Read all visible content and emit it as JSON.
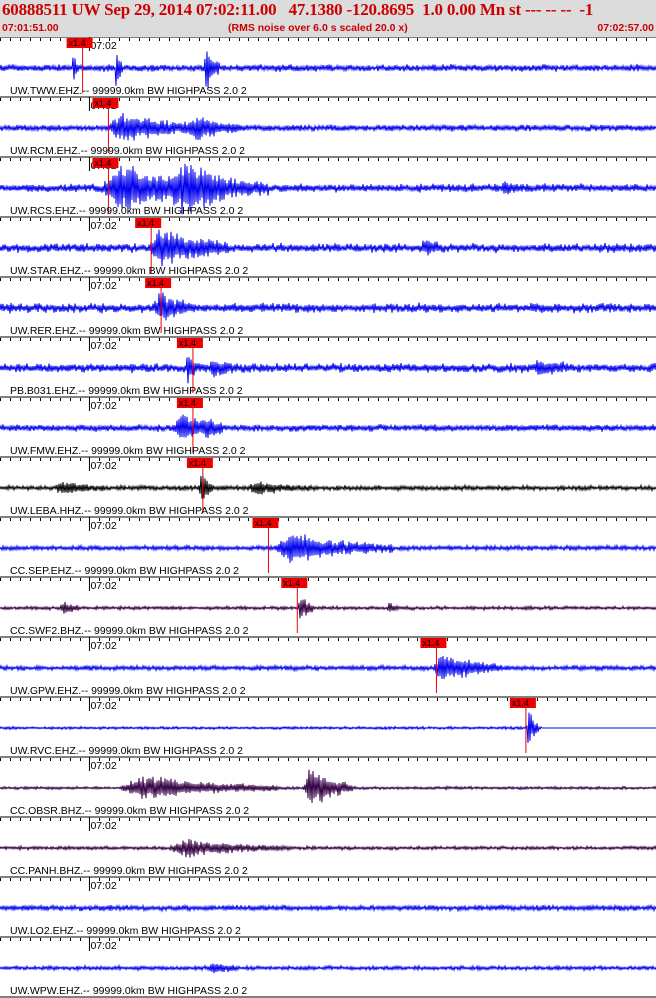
{
  "header": {
    "title": "60888511 UW Sep 29, 2014 07:02:11.00   47.1380 -120.8695  1.0 0.00 Mn st --- -- --  -1",
    "start_time": "07:01:51.00",
    "note": "(RMS noise over 6.0 s scaled 20.0 x)",
    "end_time": "07:02:57.00"
  },
  "chart_data": {
    "type": "line",
    "title": "60888511 UW Sep 29, 2014 07:02:11.00   47.1380 -120.8695  1.0 0.00 Mn st --- -- --  -1",
    "x_unit": "seconds after 07:01:51.00",
    "x_range": [
      0,
      66
    ],
    "minute_tick_label": "07:02",
    "minute_tick_x": 9,
    "grid": true,
    "tick_interval_s": 1,
    "pick_label": "x1.4",
    "colors": {
      "blue": "#0000ee",
      "black": "#000000",
      "purple": "#330044",
      "pick": "#ee0000",
      "tick": "#000000"
    },
    "traces": [
      {
        "label": "UW.TWW.EHZ.-- 99999.0km BW  HIGHPASS  2.0  2",
        "pick": 6.7,
        "color": "blue",
        "noise": 0.1,
        "events": [
          {
            "t": 7.3,
            "amp": 0.75,
            "dur": 0.6
          },
          {
            "t": 11.6,
            "amp": 0.9,
            "dur": 0.7
          },
          {
            "t": 20.5,
            "amp": 0.85,
            "dur": 1.6
          }
        ]
      },
      {
        "label": "UW.RCM.EHZ.-- 99999.0km BW  HIGHPASS  2.0  2",
        "pick": 9.3,
        "color": "blue",
        "noise": 0.09,
        "events": [
          {
            "t": 10.7,
            "amp": 0.55,
            "dur": 11
          },
          {
            "t": 19.0,
            "amp": 0.35,
            "dur": 6
          }
        ]
      },
      {
        "label": "UW.RCS.EHZ.-- 99999.0km BW  HIGHPASS  2.0  2",
        "pick": 9.3,
        "color": "blue",
        "noise": 0.12,
        "events": [
          {
            "t": 10.2,
            "amp": 0.95,
            "dur": 12
          },
          {
            "t": 17.0,
            "amp": 0.8,
            "dur": 10
          },
          {
            "t": 50.5,
            "amp": 0.2,
            "dur": 3
          }
        ]
      },
      {
        "label": "UW.STAR.EHZ.-- 99999.0km BW  HIGHPASS  2.0  2",
        "pick": 13.6,
        "color": "blue",
        "noise": 0.13,
        "events": [
          {
            "t": 15.0,
            "amp": 0.75,
            "dur": 8
          },
          {
            "t": 42.4,
            "amp": 0.3,
            "dur": 2
          }
        ]
      },
      {
        "label": "UW.RER.EHZ.-- 99999.0km BW  HIGHPASS  2.0  2",
        "pick": 14.6,
        "color": "blue",
        "noise": 0.14,
        "events": [
          {
            "t": 15.5,
            "amp": 0.5,
            "dur": 4
          }
        ]
      },
      {
        "label": "PB.B031.EHZ.-- 99999.0km BW  HIGHPASS  2.0  2",
        "pick": 17.8,
        "color": "blue",
        "noise": 0.13,
        "events": [
          {
            "t": 18.7,
            "amp": 0.55,
            "dur": 1.2
          },
          {
            "t": 21.0,
            "amp": 0.3,
            "dur": 3
          },
          {
            "t": 53.5,
            "amp": 0.28,
            "dur": 4
          }
        ]
      },
      {
        "label": "UW.FMW.EHZ.-- 99999.0km BW  HIGHPASS  2.0  2",
        "pick": 17.8,
        "color": "blue",
        "noise": 0.1,
        "events": [
          {
            "t": 17.5,
            "amp": 0.55,
            "dur": 5
          },
          {
            "t": 20.3,
            "amp": 0.25,
            "dur": 2
          }
        ]
      },
      {
        "label": "UW.LEBA.HHZ.-- 99999.0km BW  HIGHPASS  2.0  2",
        "pick": 18.8,
        "color": "black",
        "noise": 0.07,
        "events": [
          {
            "t": 5.5,
            "amp": 0.25,
            "dur": 5
          },
          {
            "t": 20.0,
            "amp": 0.75,
            "dur": 1.5
          },
          {
            "t": 25.0,
            "amp": 0.25,
            "dur": 6
          }
        ]
      },
      {
        "label": "CC.SEP.EHZ.-- 99999.0km BW  HIGHPASS  2.0  2",
        "pick": 25.4,
        "color": "blue",
        "noise": 0.07,
        "events": [
          {
            "t": 27.5,
            "amp": 0.6,
            "dur": 12
          }
        ]
      },
      {
        "label": "CC.SWF2.BHZ.-- 99999.0km BW  HIGHPASS  2.0  2",
        "pick": 28.3,
        "color": "purple",
        "noise": 0.05,
        "events": [
          {
            "t": 6.0,
            "amp": 0.25,
            "dur": 2
          },
          {
            "t": 30.0,
            "amp": 0.65,
            "dur": 1.5
          },
          {
            "t": 39.0,
            "amp": 0.25,
            "dur": 1.2
          }
        ]
      },
      {
        "label": "UW.GPW.EHZ.-- 99999.0km BW  HIGHPASS  2.0  2",
        "pick": 42.3,
        "color": "blue",
        "noise": 0.07,
        "events": [
          {
            "t": 43.5,
            "amp": 0.6,
            "dur": 7
          }
        ]
      },
      {
        "label": "UW.RVC.EHZ.-- 99999.0km BW  HIGHPASS  2.0  2",
        "pick": 51.3,
        "color": "blue",
        "noise": 0.04,
        "events": [
          {
            "t": 53.0,
            "amp": 0.95,
            "dur": 1.2
          }
        ],
        "flat_after": 54.5
      },
      {
        "label": "CC.OBSR.BHZ.-- 99999.0km BW  HIGHPASS  2.0  2",
        "pick": null,
        "color": "purple",
        "noise": 0.04,
        "events": [
          {
            "t": 12.0,
            "amp": 0.5,
            "dur": 16
          },
          {
            "t": 30.5,
            "amp": 0.95,
            "dur": 5
          }
        ]
      },
      {
        "label": "CC.PANH.BHZ.-- 99999.0km BW  HIGHPASS  2.0  2",
        "pick": null,
        "color": "purple",
        "noise": 0.05,
        "events": [
          {
            "t": 17.0,
            "amp": 0.35,
            "dur": 12
          }
        ]
      },
      {
        "label": "UW.LO2.EHZ.-- 99999.0km BW  HIGHPASS  2.0  2",
        "pick": null,
        "color": "blue",
        "noise": 0.08,
        "events": []
      },
      {
        "label": "UW.WPW.EHZ.-- 99999.0km BW  HIGHPASS  2.0  2",
        "pick": null,
        "color": "blue",
        "noise": 0.06,
        "events": [
          {
            "t": 21.0,
            "amp": 0.25,
            "dur": 3
          }
        ]
      }
    ]
  }
}
